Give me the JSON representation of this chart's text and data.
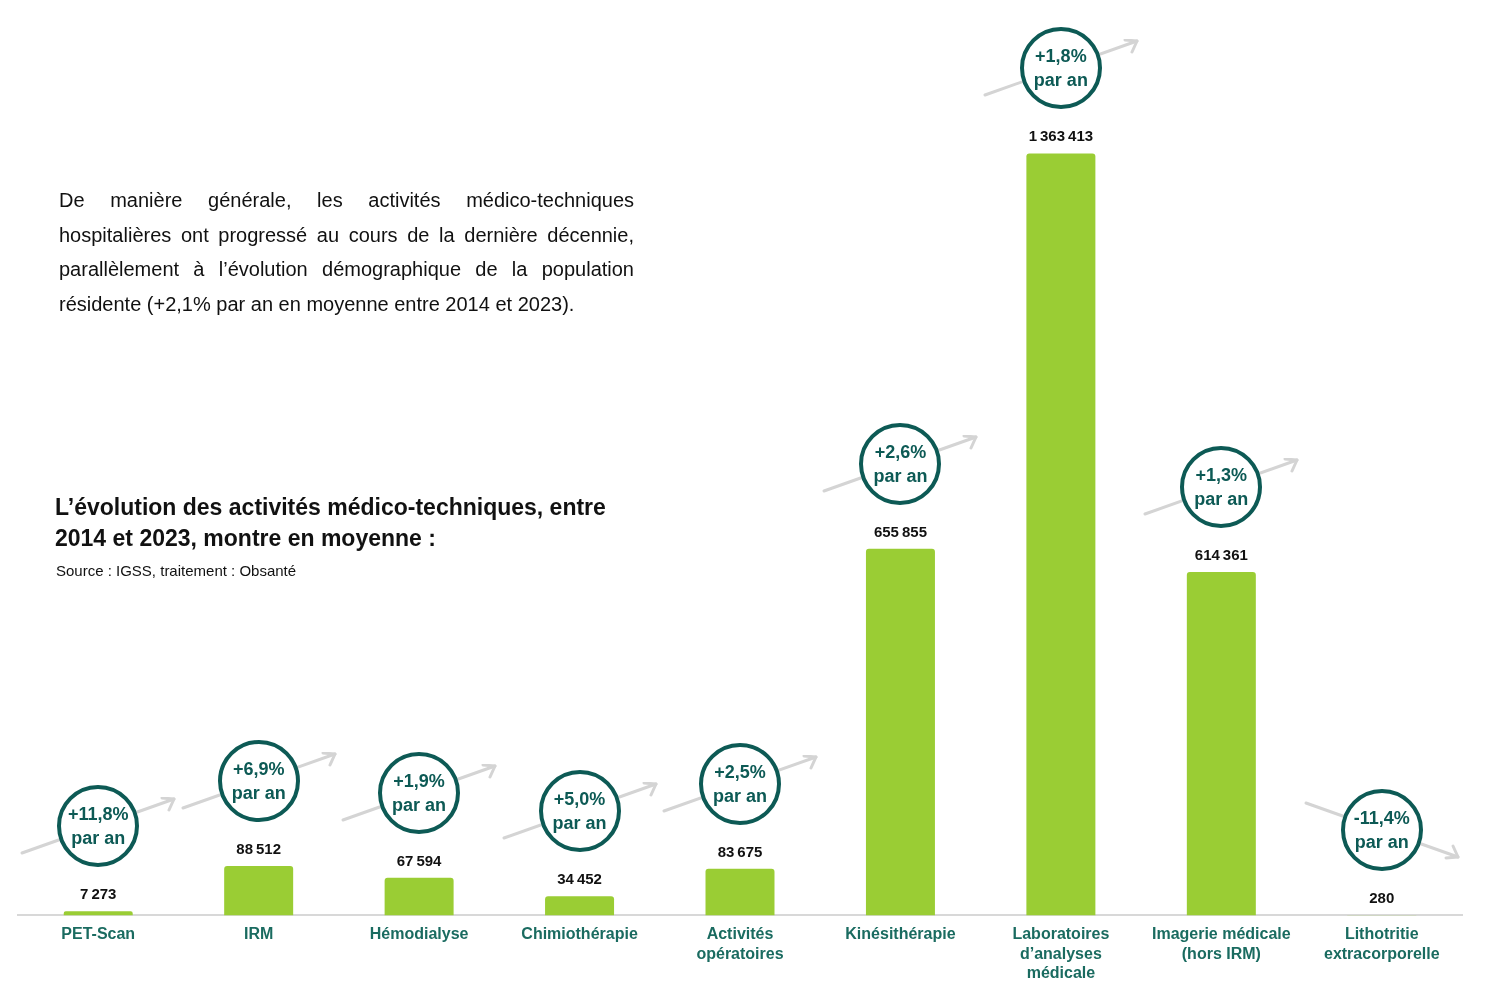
{
  "chart_data": {
    "type": "bar",
    "title": "L’évolution des activités médico-techniques, entre 2014 et 2023, montre en moyenne :",
    "categories": [
      "PET-Scan",
      "IRM",
      "Hémodialyse",
      "Chimiothérapie",
      "Activités opératoires",
      "Kinésithérapie",
      "Laboratoires d’analyses médicale",
      "Imagerie médicale (hors IRM)",
      "Lithotritie extracorporelle"
    ],
    "values": [
      7273,
      88512,
      67594,
      34452,
      83675,
      655855,
      1363413,
      614361,
      280
    ],
    "color": "#9acd34",
    "data_labels": true,
    "grid": false,
    "legend": false,
    "annotations": [
      "De manière générale, les activités médico-techniques hospitalières ont progressé au cours de la dernière décennie, parallèlement à l’évolution démographique de la population résidente (+2,1% par an en moyenne entre 2014 et 2023).",
      "Source : IGSS, traitement : Obsanté",
      "+11,8%\npar an",
      "+6,9%\npar an",
      "+1,9%\npar an",
      "+5,0%\npar an",
      "+2,5%\npar an",
      "+2,6%\npar an",
      "+1,8%\npar an",
      "+1,3%\npar an",
      "-11,4%\npar an"
    ]
  }
}
